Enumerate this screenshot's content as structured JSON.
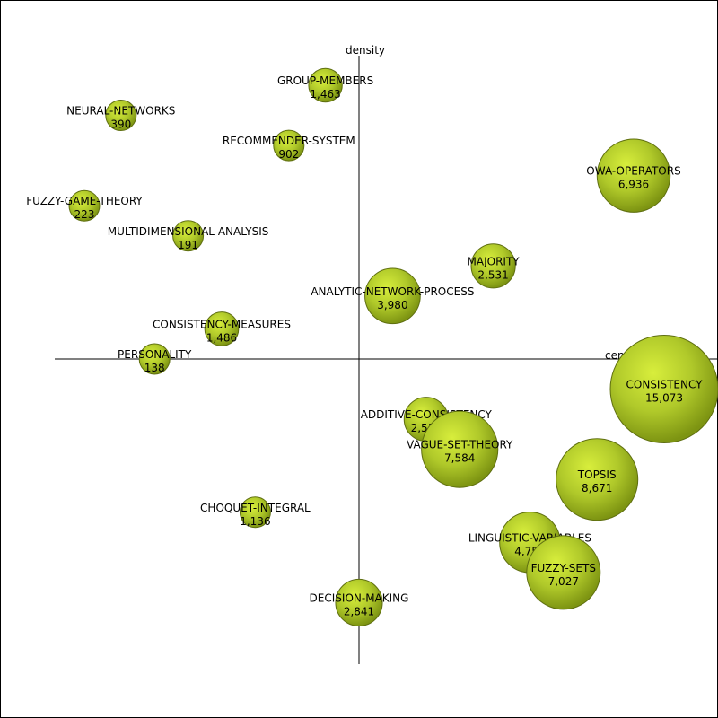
{
  "chart_data": {
    "type": "bubble",
    "title": "",
    "axis_labels": {
      "horizontal": "centrality",
      "vertical": "density"
    },
    "xlim": [
      -1,
      1.18
    ],
    "ylim": [
      -1,
      1.1
    ],
    "grid": false,
    "bubble_color": "#aac22a",
    "bubble_edge": "#5f6f10",
    "points": [
      {
        "name": "GROUP-MEMBERS",
        "value": "1,463",
        "x": -0.11,
        "y": 1.0
      },
      {
        "name": "NEURAL-NETWORKS",
        "value": "390",
        "x": -0.78,
        "y": 0.89
      },
      {
        "name": "RECOMMENDER-SYSTEM",
        "value": "902",
        "x": -0.23,
        "y": 0.78
      },
      {
        "name": "OWA-OPERATORS",
        "value": "6,936",
        "x": 0.9,
        "y": 0.67
      },
      {
        "name": "FUZZY-GAME-THEORY",
        "value": "223",
        "x": -0.9,
        "y": 0.56
      },
      {
        "name": "MULTIDIMENSIONAL-ANALYSIS",
        "value": "191",
        "x": -0.56,
        "y": 0.45
      },
      {
        "name": "MAJORITY",
        "value": "2,531",
        "x": 0.44,
        "y": 0.34
      },
      {
        "name": "ANALYTIC-NETWORK-PROCESS",
        "value": "3,980",
        "x": 0.11,
        "y": 0.23
      },
      {
        "name": "CONSISTENCY-MEASURES",
        "value": "1,486",
        "x": -0.45,
        "y": 0.11
      },
      {
        "name": "PERSONALITY",
        "value": "138",
        "x": -0.67,
        "y": 0.0
      },
      {
        "name": "CONSISTENCY",
        "value": "15,073",
        "x": 1.0,
        "y": -0.11
      },
      {
        "name": "ADDITIVE-CONSISTENCY",
        "value": "2,519",
        "x": 0.22,
        "y": -0.22
      },
      {
        "name": "VAGUE-SET-THEORY",
        "value": "7,584",
        "x": 0.33,
        "y": -0.33
      },
      {
        "name": "TOPSIS",
        "value": "8,671",
        "x": 0.78,
        "y": -0.44
      },
      {
        "name": "CHOQUET-INTEGRAL",
        "value": "1,136",
        "x": -0.34,
        "y": -0.56
      },
      {
        "name": "LINGUISTIC-VARIABLES",
        "value": "4,755",
        "x": 0.56,
        "y": -0.67
      },
      {
        "name": "FUZZY-SETS",
        "value": "7,027",
        "x": 0.67,
        "y": -0.78
      },
      {
        "name": "DECISION-MAKING",
        "value": "2,841",
        "x": 0.0,
        "y": -0.89
      }
    ]
  }
}
